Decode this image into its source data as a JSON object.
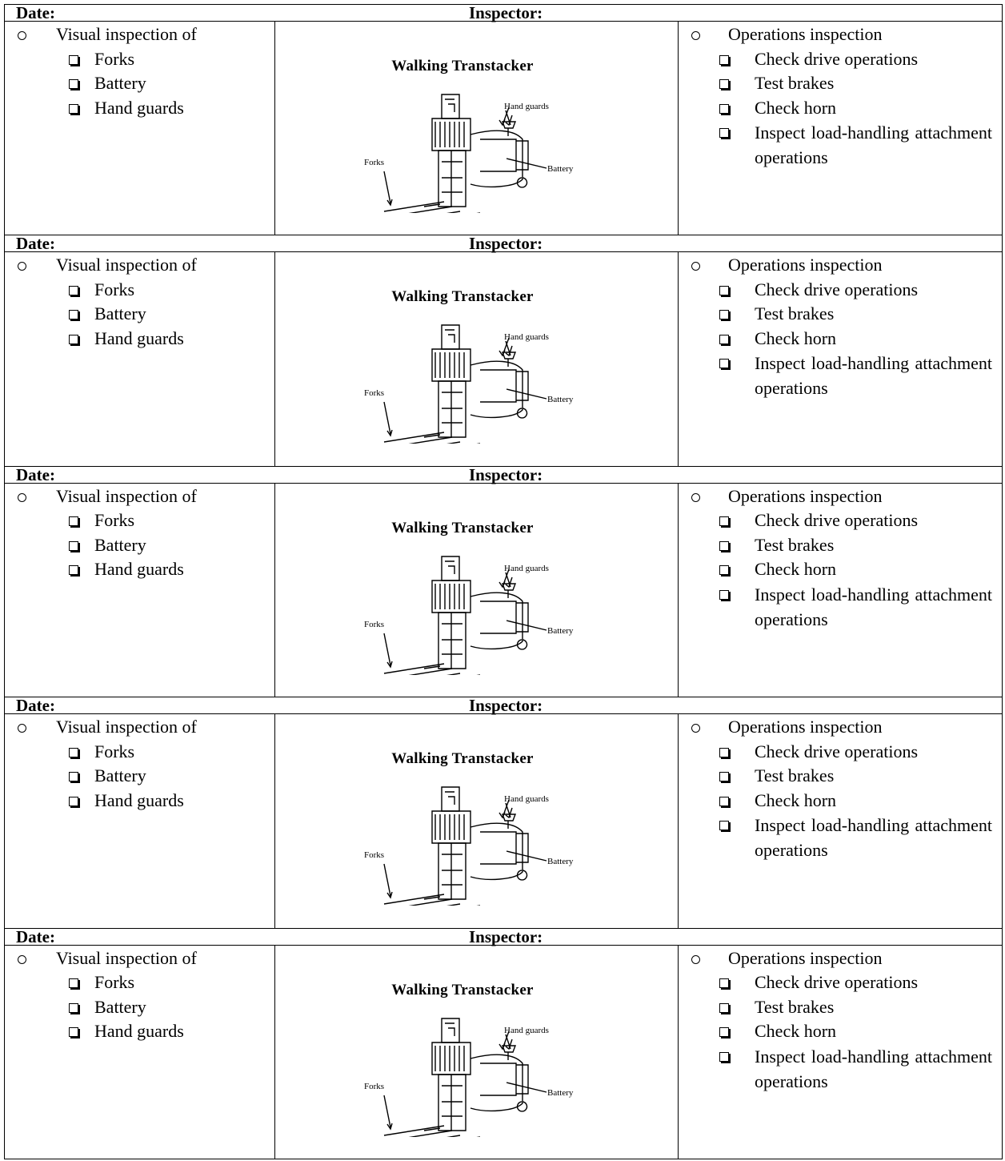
{
  "blocks": [
    {
      "date": "Date:",
      "inspector": "Inspector:",
      "visual": {
        "heading": "Visual inspection of",
        "items": [
          "Forks",
          "Battery",
          "Hand guards"
        ]
      },
      "figure": {
        "title": "Walking Transtacker",
        "hand_guards": "Hand guards",
        "forks": "Forks",
        "battery": "Battery"
      },
      "operations": {
        "heading": "Operations inspection",
        "items": [
          "Check drive operations",
          "Test brakes",
          "Check horn",
          "Inspect load-handling attachment operations"
        ]
      }
    },
    {
      "date": "Date:",
      "inspector": "Inspector:",
      "visual": {
        "heading": "Visual inspection of",
        "items": [
          "Forks",
          "Battery",
          "Hand guards"
        ]
      },
      "figure": {
        "title": "Walking Transtacker",
        "hand_guards": "Hand guards",
        "forks": "Forks",
        "battery": "Battery"
      },
      "operations": {
        "heading": "Operations inspection",
        "items": [
          "Check drive operations",
          "Test brakes",
          "Check horn",
          "Inspect load-handling attachment operations"
        ]
      }
    },
    {
      "date": "Date:",
      "inspector": "Inspector:",
      "visual": {
        "heading": "Visual inspection of",
        "items": [
          "Forks",
          "Battery",
          "Hand guards"
        ]
      },
      "figure": {
        "title": "Walking Transtacker",
        "hand_guards": "Hand guards",
        "forks": "Forks",
        "battery": "Battery"
      },
      "operations": {
        "heading": "Operations inspection",
        "items": [
          "Check drive operations",
          "Test brakes",
          "Check horn",
          "Inspect load-handling attachment operations"
        ]
      }
    },
    {
      "date": "Date:",
      "inspector": "Inspector:",
      "visual": {
        "heading": "Visual inspection of",
        "items": [
          "Forks",
          "Battery",
          "Hand guards"
        ]
      },
      "figure": {
        "title": "Walking Transtacker",
        "hand_guards": "Hand guards",
        "forks": "Forks",
        "battery": "Battery"
      },
      "operations": {
        "heading": "Operations inspection",
        "items": [
          "Check drive operations",
          "Test brakes",
          "Check horn",
          "Inspect load-handling attachment operations"
        ]
      }
    },
    {
      "date": "Date:",
      "inspector": "Inspector:",
      "visual": {
        "heading": "Visual inspection of",
        "items": [
          "Forks",
          "Battery",
          "Hand guards"
        ]
      },
      "figure": {
        "title": "Walking Transtacker",
        "hand_guards": "Hand guards",
        "forks": "Forks",
        "battery": "Battery"
      },
      "operations": {
        "heading": "Operations inspection",
        "items": [
          "Check drive operations",
          "Test brakes",
          "Check horn",
          "Inspect load-handling attachment operations"
        ]
      }
    }
  ]
}
